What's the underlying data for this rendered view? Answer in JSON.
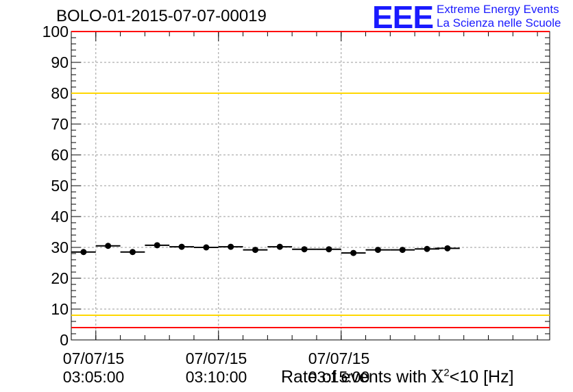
{
  "page": {
    "title": "BOLO-01-2015-07-07-00019"
  },
  "logo": {
    "mark": "EEE",
    "line1": "Extreme Energy Events",
    "line2": "La Scienza nelle Scuole",
    "color": "#1a1aff"
  },
  "chart_data": {
    "type": "scatter",
    "title": "BOLO-01-2015-07-07-00019",
    "xlabel_prefix": "Rate of events with ",
    "xlabel_chi": "X",
    "xlabel_sup": "2",
    "xlabel_suffix": "<10 [Hz]",
    "ylabel": "",
    "ylim": [
      0,
      100
    ],
    "yticks": [
      0,
      10,
      20,
      30,
      40,
      50,
      60,
      70,
      80,
      90,
      100
    ],
    "xlim_seconds_after_03_04_00": [
      0,
      1170
    ],
    "xticks": [
      {
        "date": "07/07/15",
        "time": "03:05:00"
      },
      {
        "date": "07/07/15",
        "time": "03:10:00"
      },
      {
        "date": "07/07/15",
        "time": "03:15:00"
      }
    ],
    "grid": true,
    "series": [
      {
        "marker": "filled-circle",
        "color": "#000000",
        "x_times": [
          "03:04:30",
          "03:05:30",
          "03:06:30",
          "03:07:30",
          "03:08:30",
          "03:09:30",
          "03:10:30",
          "03:11:30",
          "03:12:30",
          "03:13:30",
          "03:14:30",
          "03:15:30",
          "03:16:30",
          "03:17:30",
          "03:18:30",
          "03:19:20"
        ],
        "values": [
          28.5,
          30.5,
          28.5,
          30.7,
          30.2,
          30.0,
          30.2,
          29.2,
          30.2,
          29.4,
          29.4,
          28.2,
          29.2,
          29.2,
          29.5,
          29.7
        ]
      }
    ],
    "reference_lines": [
      {
        "y": 100,
        "color": "#ff0000"
      },
      {
        "y": 80,
        "color": "#ffd700"
      },
      {
        "y": 8,
        "color": "#ffd700"
      },
      {
        "y": 4,
        "color": "#ff0000"
      }
    ]
  }
}
